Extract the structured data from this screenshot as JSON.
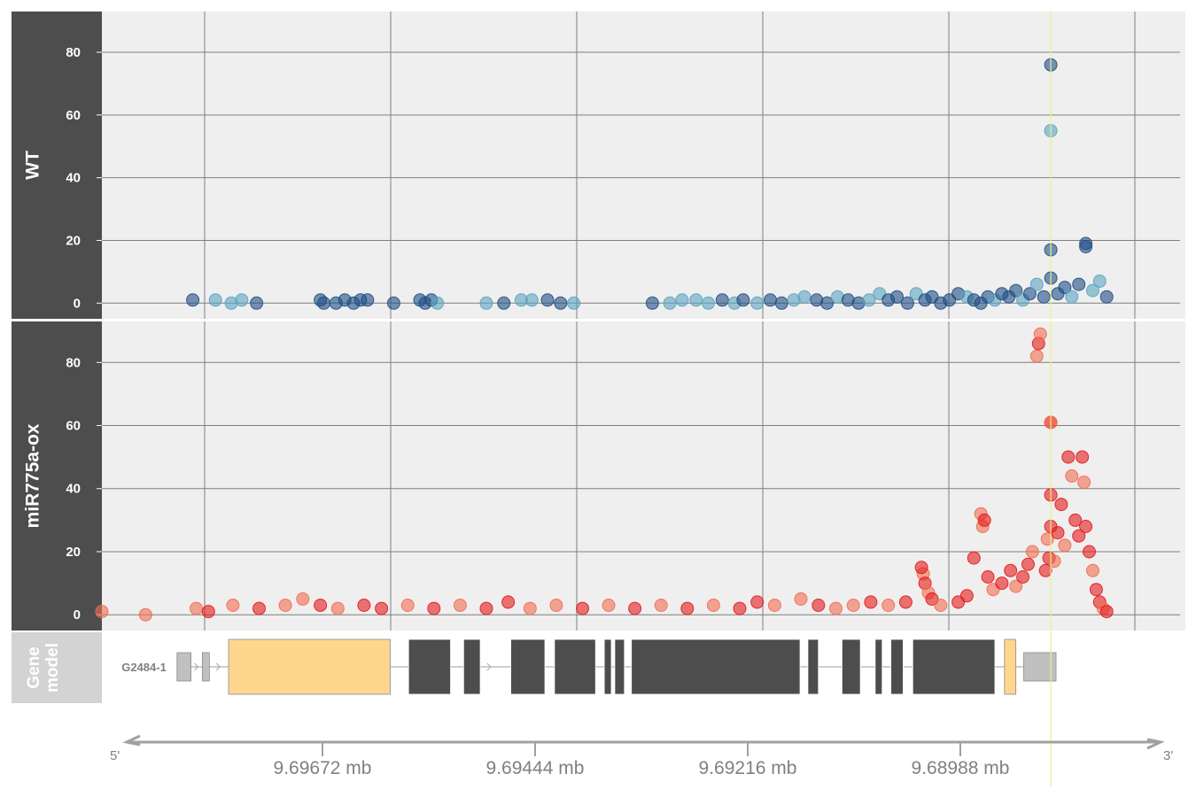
{
  "colors": {
    "panel_bg": "#efefef",
    "strip_bg": "#4d4d4d",
    "gene_strip_bg": "#d3d3d3",
    "grid": "#7f7f7f",
    "wt_a": "#5ba3c0",
    "wt_b": "#1f4e85",
    "ox_a": "#f26d50",
    "ox_b": "#e31a1c",
    "utr": "#c0c0c0",
    "cds_light": "#fed68e",
    "exon": "#4d4d4d",
    "intron": "#b0b0b0",
    "axis": "#a0a0a0",
    "highlight": "#e8f08a"
  },
  "chart_data": {
    "type": "scatter",
    "x_range": [
      9.7004,
      9.688
    ],
    "x_ticks": [
      9.69672,
      9.69444,
      9.69216,
      9.68988
    ],
    "x_tick_labels": [
      "9.69672 mb",
      "9.69444 mb",
      "9.69216 mb",
      "9.68988 mb"
    ],
    "x_end_labels": [
      "5'",
      "3'"
    ],
    "highlight_x": 9.68954,
    "panels": [
      {
        "name": "WT",
        "ylim": [
          -5,
          93
        ],
        "yticks": [
          0,
          20,
          40,
          60,
          80
        ],
        "colors": [
          "wt_a",
          "wt_b"
        ],
        "points": [
          [
            9.69936,
            1,
            1
          ],
          [
            9.6991,
            1,
            0
          ],
          [
            9.69892,
            0,
            0
          ],
          [
            9.6988,
            1,
            0
          ],
          [
            9.69863,
            0,
            1
          ],
          [
            9.6979,
            1,
            1
          ],
          [
            9.69786,
            0,
            1
          ],
          [
            9.69772,
            0,
            1
          ],
          [
            9.69762,
            1,
            1
          ],
          [
            9.69752,
            0,
            1
          ],
          [
            9.69744,
            1,
            1
          ],
          [
            9.69736,
            1,
            1
          ],
          [
            9.69706,
            0,
            1
          ],
          [
            9.69676,
            1,
            1
          ],
          [
            9.6967,
            0,
            1
          ],
          [
            9.69663,
            1,
            1
          ],
          [
            9.69656,
            0,
            0
          ],
          [
            9.696,
            0,
            0
          ],
          [
            9.6958,
            0,
            1
          ],
          [
            9.6956,
            1,
            0
          ],
          [
            9.69548,
            1,
            0
          ],
          [
            9.6953,
            1,
            1
          ],
          [
            9.69515,
            0,
            1
          ],
          [
            9.695,
            0,
            0
          ],
          [
            9.6941,
            0,
            1
          ],
          [
            9.6939,
            0,
            0
          ],
          [
            9.69376,
            1,
            0
          ],
          [
            9.6936,
            1,
            0
          ],
          [
            9.69346,
            0,
            0
          ],
          [
            9.6933,
            1,
            1
          ],
          [
            9.69316,
            0,
            0
          ],
          [
            9.69306,
            1,
            1
          ],
          [
            9.6929,
            0,
            0
          ],
          [
            9.69275,
            1,
            1
          ],
          [
            9.69262,
            0,
            1
          ],
          [
            9.69248,
            1,
            0
          ],
          [
            9.69236,
            2,
            0
          ],
          [
            9.69222,
            1,
            1
          ],
          [
            9.6921,
            0,
            1
          ],
          [
            9.69198,
            2,
            0
          ],
          [
            9.69186,
            1,
            1
          ],
          [
            9.69174,
            0,
            1
          ],
          [
            9.69162,
            1,
            0
          ],
          [
            9.6915,
            3,
            0
          ],
          [
            9.6914,
            1,
            1
          ],
          [
            9.6913,
            2,
            1
          ],
          [
            9.69118,
            0,
            1
          ],
          [
            9.69108,
            3,
            0
          ],
          [
            9.69098,
            1,
            1
          ],
          [
            9.6909,
            2,
            1
          ],
          [
            9.6908,
            0,
            1
          ],
          [
            9.6907,
            1,
            1
          ],
          [
            9.6906,
            3,
            1
          ],
          [
            9.6905,
            2,
            0
          ],
          [
            9.69042,
            1,
            1
          ],
          [
            9.69034,
            0,
            1
          ],
          [
            9.69026,
            2,
            1
          ],
          [
            9.69018,
            1,
            0
          ],
          [
            9.6901,
            3,
            1
          ],
          [
            9.69002,
            2,
            1
          ],
          [
            9.68994,
            4,
            1
          ],
          [
            9.68986,
            1,
            0
          ],
          [
            9.68978,
            3,
            1
          ],
          [
            9.6897,
            6,
            0
          ],
          [
            9.68962,
            2,
            1
          ],
          [
            9.68954,
            8,
            1
          ],
          [
            9.68954,
            76,
            1
          ],
          [
            9.68954,
            55,
            0
          ],
          [
            9.68954,
            17,
            1
          ],
          [
            9.68946,
            3,
            1
          ],
          [
            9.68938,
            5,
            1
          ],
          [
            9.6893,
            2,
            0
          ],
          [
            9.68922,
            6,
            1
          ],
          [
            9.68914,
            19,
            1
          ],
          [
            9.68914,
            18,
            1
          ],
          [
            9.68906,
            4,
            0
          ],
          [
            9.68898,
            7,
            0
          ],
          [
            9.6889,
            2,
            1
          ]
        ]
      },
      {
        "name": "miR775a-ox",
        "ylim": [
          -5,
          93
        ],
        "yticks": [
          0,
          20,
          40,
          60,
          80
        ],
        "colors": [
          "ox_a",
          "ox_b"
        ],
        "points": [
          [
            9.7004,
            1,
            0
          ],
          [
            9.6999,
            0,
            0
          ],
          [
            9.69932,
            2,
            0
          ],
          [
            9.69918,
            1,
            1
          ],
          [
            9.6989,
            3,
            0
          ],
          [
            9.6986,
            2,
            1
          ],
          [
            9.6983,
            3,
            0
          ],
          [
            9.6981,
            5,
            0
          ],
          [
            9.6979,
            3,
            1
          ],
          [
            9.6977,
            2,
            0
          ],
          [
            9.6974,
            3,
            1
          ],
          [
            9.6972,
            2,
            1
          ],
          [
            9.6969,
            3,
            0
          ],
          [
            9.6966,
            2,
            1
          ],
          [
            9.6963,
            3,
            0
          ],
          [
            9.696,
            2,
            1
          ],
          [
            9.69575,
            4,
            1
          ],
          [
            9.6955,
            2,
            0
          ],
          [
            9.6952,
            3,
            0
          ],
          [
            9.6949,
            2,
            1
          ],
          [
            9.6946,
            3,
            0
          ],
          [
            9.6943,
            2,
            1
          ],
          [
            9.694,
            3,
            0
          ],
          [
            9.6937,
            2,
            1
          ],
          [
            9.6934,
            3,
            0
          ],
          [
            9.6931,
            2,
            1
          ],
          [
            9.6929,
            4,
            1
          ],
          [
            9.6927,
            3,
            0
          ],
          [
            9.6924,
            5,
            0
          ],
          [
            9.6922,
            3,
            1
          ],
          [
            9.692,
            2,
            0
          ],
          [
            9.6918,
            3,
            0
          ],
          [
            9.6916,
            4,
            1
          ],
          [
            9.6914,
            3,
            0
          ],
          [
            9.6912,
            4,
            1
          ],
          [
            9.691,
            13,
            0
          ],
          [
            9.69098,
            10,
            1
          ],
          [
            9.69094,
            7,
            0
          ],
          [
            9.69102,
            15,
            1
          ],
          [
            9.6909,
            5,
            1
          ],
          [
            9.6908,
            3,
            0
          ],
          [
            9.6906,
            4,
            1
          ],
          [
            9.6905,
            6,
            1
          ],
          [
            9.69042,
            18,
            1
          ],
          [
            9.69034,
            32,
            0
          ],
          [
            9.69032,
            28,
            0
          ],
          [
            9.6903,
            30,
            1
          ],
          [
            9.69026,
            12,
            1
          ],
          [
            9.6902,
            8,
            0
          ],
          [
            9.6901,
            10,
            1
          ],
          [
            9.69,
            14,
            1
          ],
          [
            9.68994,
            9,
            0
          ],
          [
            9.68986,
            12,
            1
          ],
          [
            9.6898,
            16,
            1
          ],
          [
            9.68975,
            20,
            0
          ],
          [
            9.6897,
            82,
            0
          ],
          [
            9.68968,
            86,
            1
          ],
          [
            9.68966,
            89,
            0
          ],
          [
            9.6896,
            14,
            1
          ],
          [
            9.68958,
            24,
            0
          ],
          [
            9.68956,
            18,
            1
          ],
          [
            9.68954,
            61,
            1
          ],
          [
            9.68954,
            61,
            0
          ],
          [
            9.68954,
            28,
            1
          ],
          [
            9.68954,
            38,
            1
          ],
          [
            9.6895,
            17,
            0
          ],
          [
            9.68946,
            26,
            1
          ],
          [
            9.68942,
            35,
            1
          ],
          [
            9.68938,
            22,
            0
          ],
          [
            9.68934,
            50,
            1
          ],
          [
            9.6893,
            44,
            0
          ],
          [
            9.68926,
            30,
            1
          ],
          [
            9.68922,
            25,
            1
          ],
          [
            9.68918,
            50,
            1
          ],
          [
            9.68916,
            42,
            0
          ],
          [
            9.68914,
            28,
            1
          ],
          [
            9.6891,
            20,
            1
          ],
          [
            9.68906,
            14,
            0
          ],
          [
            9.68902,
            8,
            1
          ],
          [
            9.68898,
            4,
            1
          ],
          [
            9.68894,
            2,
            0
          ],
          [
            9.6889,
            1,
            1
          ]
        ]
      }
    ],
    "gene_track": {
      "strip_label": "Gene model",
      "gene_name": "G2484-1",
      "features": [
        {
          "kind": "utr",
          "start": 9.69954,
          "end": 9.69938
        },
        {
          "kind": "utr",
          "start": 9.69925,
          "end": 9.69917
        },
        {
          "kind": "cds_light",
          "start": 9.69895,
          "end": 9.6971
        },
        {
          "kind": "exon",
          "start": 9.69689,
          "end": 9.69641
        },
        {
          "kind": "exon",
          "start": 9.69626,
          "end": 9.69607
        },
        {
          "kind": "exon",
          "start": 9.69572,
          "end": 9.69533
        },
        {
          "kind": "exon",
          "start": 9.69522,
          "end": 9.69475
        },
        {
          "kind": "exon",
          "start": 9.69465,
          "end": 9.69457
        },
        {
          "kind": "exon",
          "start": 9.69453,
          "end": 9.69442
        },
        {
          "kind": "exon",
          "start": 9.69434,
          "end": 9.69241
        },
        {
          "kind": "exon",
          "start": 9.69232,
          "end": 9.6922
        },
        {
          "kind": "exon",
          "start": 9.69193,
          "end": 9.69172
        },
        {
          "kind": "exon",
          "start": 9.69155,
          "end": 9.69147
        },
        {
          "kind": "exon",
          "start": 9.69137,
          "end": 9.69123
        },
        {
          "kind": "exon",
          "start": 9.69112,
          "end": 9.69018
        },
        {
          "kind": "cds_light",
          "start": 9.69007,
          "end": 9.68994
        },
        {
          "kind": "utr",
          "start": 9.68985,
          "end": 9.68948
        }
      ],
      "intron_arrows": [
        9.6993,
        9.69905,
        9.69615,
        9.69595
      ]
    }
  }
}
